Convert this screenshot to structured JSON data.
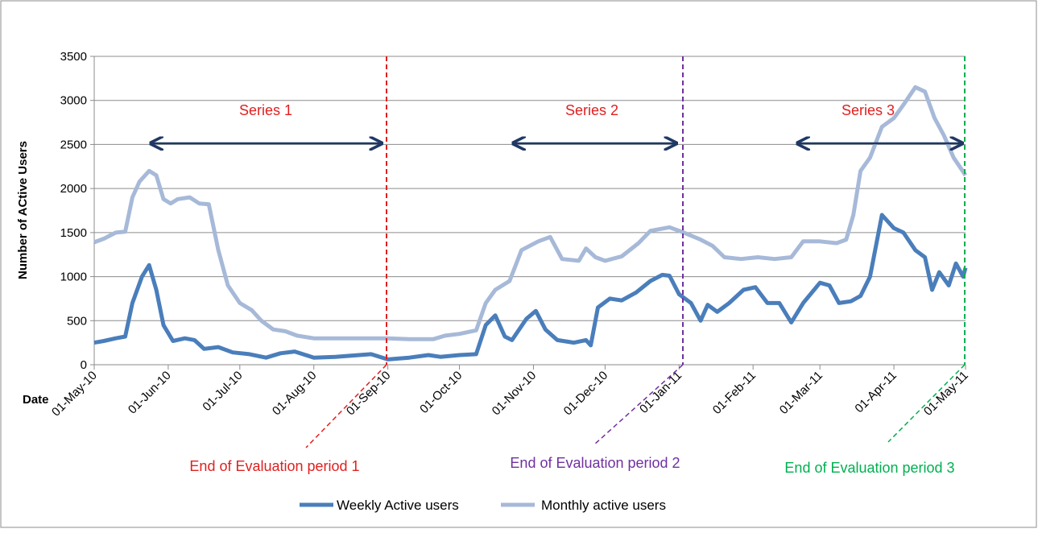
{
  "chart_data": {
    "type": "line",
    "y_label": "Number of ACtive Users",
    "x_label": "Date",
    "xlim": [
      "01-May-10",
      "01-May-11"
    ],
    "xticks": [
      "01-May-10",
      "01-Jun-10",
      "01-Jul-10",
      "01-Aug-10",
      "01-Sep-10",
      "01-Oct-10",
      "01-Nov-10",
      "01-Dec-10",
      "01-Jan-11",
      "01-Feb-11",
      "01-Mar-11",
      "01-Apr-11",
      "01-May-11"
    ],
    "ylim": [
      0,
      3500
    ],
    "yticks": [
      0,
      500,
      1000,
      1500,
      2000,
      2500,
      3000,
      3500
    ],
    "grid": true,
    "legend": "bottom",
    "series": [
      {
        "name": "Weekly Active users",
        "color": "#4a7ebb",
        "x": [
          "01-May-10",
          "05-May-10",
          "10-May-10",
          "14-May-10",
          "17-May-10",
          "21-May-10",
          "24-May-10",
          "27-May-10",
          "30-May-10",
          "03-Jun-10",
          "08-Jun-10",
          "12-Jun-10",
          "16-Jun-10",
          "22-Jun-10",
          "28-Jun-10",
          "05-Jul-10",
          "12-Jul-10",
          "18-Jul-10",
          "24-Jul-10",
          "01-Aug-10",
          "10-Aug-10",
          "20-Aug-10",
          "25-Aug-10",
          "01-Sep-10",
          "10-Sep-10",
          "18-Sep-10",
          "23-Sep-10",
          "01-Oct-10",
          "08-Oct-10",
          "12-Oct-10",
          "16-Oct-10",
          "20-Oct-10",
          "23-Oct-10",
          "29-Oct-10",
          "02-Nov-10",
          "06-Nov-10",
          "11-Nov-10",
          "18-Nov-10",
          "23-Nov-10",
          "25-Nov-10",
          "28-Nov-10",
          "03-Dec-10",
          "08-Dec-10",
          "14-Dec-10",
          "20-Dec-10",
          "25-Dec-10",
          "28-Dec-10",
          "01-Jan-11",
          "06-Jan-11",
          "10-Jan-11",
          "13-Jan-11",
          "17-Jan-11",
          "22-Jan-11",
          "28-Jan-11",
          "02-Feb-11",
          "07-Feb-11",
          "12-Feb-11",
          "17-Feb-11",
          "22-Feb-11",
          "01-Mar-11",
          "05-Mar-11",
          "09-Mar-11",
          "14-Mar-11",
          "18-Mar-11",
          "22-Mar-11",
          "27-Mar-11",
          "01-Apr-11",
          "05-Apr-11",
          "10-Apr-11",
          "14-Apr-11",
          "17-Apr-11",
          "20-Apr-11",
          "24-Apr-11",
          "27-Apr-11",
          "30-Apr-11",
          "01-May-11"
        ],
        "values": [
          250,
          270,
          300,
          320,
          700,
          1000,
          1130,
          850,
          450,
          270,
          300,
          280,
          180,
          200,
          140,
          120,
          80,
          130,
          150,
          80,
          90,
          110,
          120,
          60,
          80,
          110,
          90,
          110,
          120,
          450,
          560,
          320,
          280,
          520,
          610,
          400,
          280,
          250,
          280,
          220,
          650,
          750,
          730,
          820,
          950,
          1020,
          1010,
          800,
          700,
          500,
          680,
          600,
          700,
          850,
          880,
          700,
          700,
          480,
          700,
          930,
          900,
          700,
          720,
          780,
          1000,
          1700,
          1550,
          1500,
          1300,
          1220,
          850,
          1050,
          900,
          1150,
          1000,
          1100
        ]
      },
      {
        "name": "Monthly active users",
        "color": "#a7b9d8",
        "x": [
          "01-May-10",
          "05-May-10",
          "10-May-10",
          "14-May-10",
          "17-May-10",
          "20-May-10",
          "24-May-10",
          "27-May-10",
          "30-May-10",
          "02-Jun-10",
          "05-Jun-10",
          "10-Jun-10",
          "14-Jun-10",
          "18-Jun-10",
          "22-Jun-10",
          "26-Jun-10",
          "01-Jul-10",
          "06-Jul-10",
          "10-Jul-10",
          "15-Jul-10",
          "20-Jul-10",
          "25-Jul-10",
          "01-Aug-10",
          "10-Aug-10",
          "20-Aug-10",
          "01-Sep-10",
          "10-Sep-10",
          "20-Sep-10",
          "25-Sep-10",
          "01-Oct-10",
          "08-Oct-10",
          "12-Oct-10",
          "16-Oct-10",
          "22-Oct-10",
          "27-Oct-10",
          "03-Nov-10",
          "08-Nov-10",
          "13-Nov-10",
          "20-Nov-10",
          "23-Nov-10",
          "27-Nov-10",
          "01-Dec-10",
          "08-Dec-10",
          "15-Dec-10",
          "20-Dec-10",
          "28-Dec-10",
          "03-Jan-11",
          "10-Jan-11",
          "15-Jan-11",
          "20-Jan-11",
          "27-Jan-11",
          "03-Feb-11",
          "10-Feb-11",
          "17-Feb-11",
          "22-Feb-11",
          "01-Mar-11",
          "08-Mar-11",
          "12-Mar-11",
          "15-Mar-11",
          "18-Mar-11",
          "22-Mar-11",
          "27-Mar-11",
          "01-Apr-11",
          "05-Apr-11",
          "10-Apr-11",
          "14-Apr-11",
          "18-Apr-11",
          "22-Apr-11",
          "26-Apr-11",
          "01-May-11"
        ],
        "values": [
          1390,
          1430,
          1500,
          1510,
          1900,
          2080,
          2200,
          2150,
          1880,
          1830,
          1880,
          1900,
          1830,
          1820,
          1300,
          900,
          700,
          620,
          500,
          400,
          380,
          330,
          300,
          300,
          300,
          300,
          290,
          290,
          330,
          350,
          390,
          700,
          850,
          950,
          1300,
          1400,
          1450,
          1200,
          1180,
          1320,
          1220,
          1180,
          1230,
          1380,
          1520,
          1560,
          1500,
          1420,
          1350,
          1220,
          1200,
          1220,
          1200,
          1220,
          1400,
          1400,
          1380,
          1420,
          1700,
          2200,
          2350,
          2700,
          2800,
          2950,
          3150,
          3100,
          2800,
          2600,
          2350,
          2150
        ]
      }
    ],
    "annotations": [
      {
        "text": "Series 1",
        "color": "#e02020"
      },
      {
        "text": "Series 2",
        "color": "#e02020"
      },
      {
        "text": "Series 3",
        "color": "#e02020"
      },
      {
        "text": "End of Evaluation period 1",
        "color": "#e02020"
      },
      {
        "text": "End of Evaluation period 2",
        "color": "#7030a0"
      },
      {
        "text": "End of Evaluation period 3",
        "color": "#00b050"
      }
    ]
  }
}
